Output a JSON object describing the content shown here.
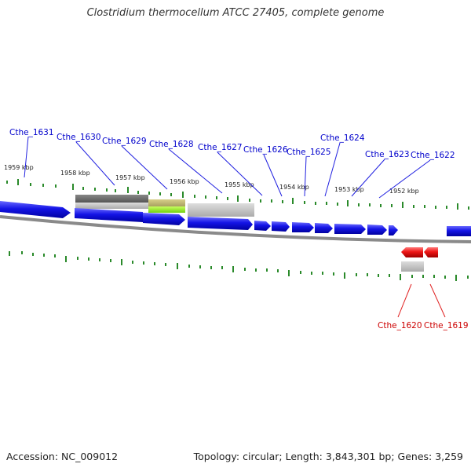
{
  "title": "Clostridium thermocellum ATCC 27405, complete genome",
  "footer": {
    "accession": "Accession: NC_009012",
    "summary": "Topology: circular; Length: 3,843,301 bp; Genes: 3,259"
  },
  "colors": {
    "forward_gene": "#1010e0",
    "reverse_gene": "#e01010",
    "backbone": "#888888",
    "ticks": "#2a8a2a",
    "label_forward": "#0000cc",
    "label_reverse": "#cc0000"
  },
  "kbp_labels": [
    "1959 kbp",
    "1958 kbp",
    "1957 kbp",
    "1956 kbp",
    "1955 kbp",
    "1954 kbp",
    "1953 kbp",
    "1952 kbp"
  ],
  "forward_genes": [
    "Cthe_1631",
    "Cthe_1630",
    "Cthe_1629",
    "Cthe_1628",
    "Cthe_1627",
    "Cthe_1626",
    "Cthe_1625",
    "Cthe_1624",
    "Cthe_1623",
    "Cthe_1622"
  ],
  "reverse_genes": [
    "Cthe_1620",
    "Cthe_1619"
  ]
}
